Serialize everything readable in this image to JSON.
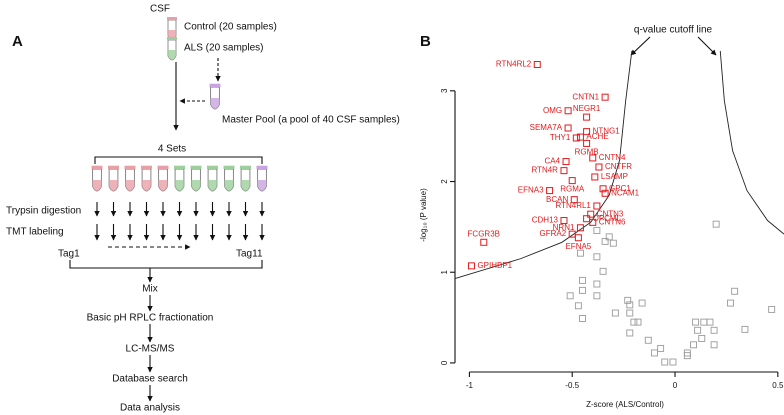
{
  "panel_a": {
    "label": "A",
    "csf": "CSF",
    "control": "Control (20 samples)",
    "als": "ALS (20 samples)",
    "master_pool": "Master Pool (a pool of 40 CSF samples)",
    "sets": "4 Sets",
    "trypsin": "Trypsin digestion",
    "tmt": "TMT labeling",
    "tag_first": "Tag1",
    "tag_last": "Tag11",
    "steps": [
      "Mix",
      "Basic pH RPLC fractionation",
      "LC-MS/MS",
      "Database search",
      "Data analysis"
    ]
  },
  "chart_data": {
    "type": "scatter",
    "panel_label": "B",
    "annotation": "q-value cutoff line",
    "xlabel": "Z-score (ALS/Control)",
    "ylabel": "-log₁₀ (P value)",
    "xlim": [
      -1.07,
      0.53
    ],
    "ylim": [
      -0.1,
      3.45
    ],
    "xticks": [
      -1,
      -0.5,
      0,
      0.5
    ],
    "yticks": [
      0,
      1,
      2,
      3
    ],
    "labeled_points": {
      "color": "#e31a1c",
      "labels": [
        "RTN4RL2",
        "CNTN1",
        "OMG",
        "NEGR1",
        "SEMA7A",
        "NTNG1",
        "THY1",
        "ACHE",
        "RGMB",
        "CNTN4",
        "CNTFR",
        "CA4",
        "LSAMP",
        "RTN4R",
        "RGMA",
        "GPC1",
        "EFNA3",
        "NCAM1",
        "BCAN",
        "RTN4RL1",
        "CNTN3",
        "OPCML",
        "CDH13",
        "CNTN6",
        "NRN1",
        "GFRA2",
        "EFNA5",
        "FCGR3B",
        "GPIHBP1"
      ],
      "x": [
        -0.67,
        -0.34,
        -0.52,
        -0.43,
        -0.52,
        -0.43,
        -0.48,
        -0.46,
        -0.43,
        -0.4,
        -0.37,
        -0.53,
        -0.39,
        -0.54,
        -0.5,
        -0.35,
        -0.61,
        -0.34,
        -0.49,
        -0.38,
        -0.41,
        -0.43,
        -0.54,
        -0.4,
        -0.46,
        -0.5,
        -0.47,
        -0.93,
        -0.99
      ],
      "values": [
        3.29,
        2.93,
        2.78,
        2.71,
        2.59,
        2.55,
        2.48,
        2.49,
        2.42,
        2.26,
        2.16,
        2.22,
        2.05,
        2.12,
        2.01,
        1.92,
        1.9,
        1.87,
        1.8,
        1.73,
        1.64,
        1.59,
        1.57,
        1.55,
        1.49,
        1.42,
        1.38,
        1.33,
        1.07
      ]
    },
    "other_points": {
      "color": "#9a9a9a",
      "x": [
        0.2,
        -0.38,
        -0.34,
        -0.3,
        -0.38,
        -0.32,
        -0.45,
        -0.45,
        -0.38,
        -0.35,
        -0.46,
        -0.51,
        -0.47,
        -0.45,
        -0.23,
        -0.22,
        -0.16,
        -0.29,
        -0.22,
        -0.2,
        -0.18,
        -0.22,
        -0.13,
        -0.07,
        -0.1,
        -0.05,
        -0.01,
        0.06,
        0.06,
        0.1,
        0.14,
        0.17,
        0.11,
        0.19,
        0.13,
        0.19,
        0.09,
        0.29,
        0.34,
        0.47,
        0.27,
        -0.38
      ],
      "values": [
        1.53,
        1.46,
        1.34,
        1.32,
        1.17,
        1.39,
        0.91,
        0.8,
        0.87,
        1.01,
        1.21,
        0.74,
        0.63,
        0.49,
        0.69,
        0.64,
        0.66,
        0.55,
        0.55,
        0.45,
        0.45,
        0.33,
        0.25,
        0.16,
        0.11,
        0.01,
        0.01,
        0.11,
        0.08,
        0.45,
        0.45,
        0.45,
        0.36,
        0.36,
        0.27,
        0.2,
        0.2,
        0.79,
        0.37,
        0.59,
        0.66,
        0.74
      ]
    },
    "cutoff_left": {
      "x": [
        -1.07,
        -0.75,
        -0.55,
        -0.41,
        -0.32,
        -0.27,
        -0.24,
        -0.21
      ],
      "values": [
        0.93,
        1.15,
        1.33,
        1.55,
        1.85,
        2.23,
        2.89,
        3.44
      ]
    },
    "cutoff_right": {
      "x": [
        0.22,
        0.24,
        0.28,
        0.35,
        0.45,
        0.53
      ],
      "values": [
        3.44,
        2.89,
        2.34,
        1.9,
        1.57,
        1.42
      ]
    }
  }
}
